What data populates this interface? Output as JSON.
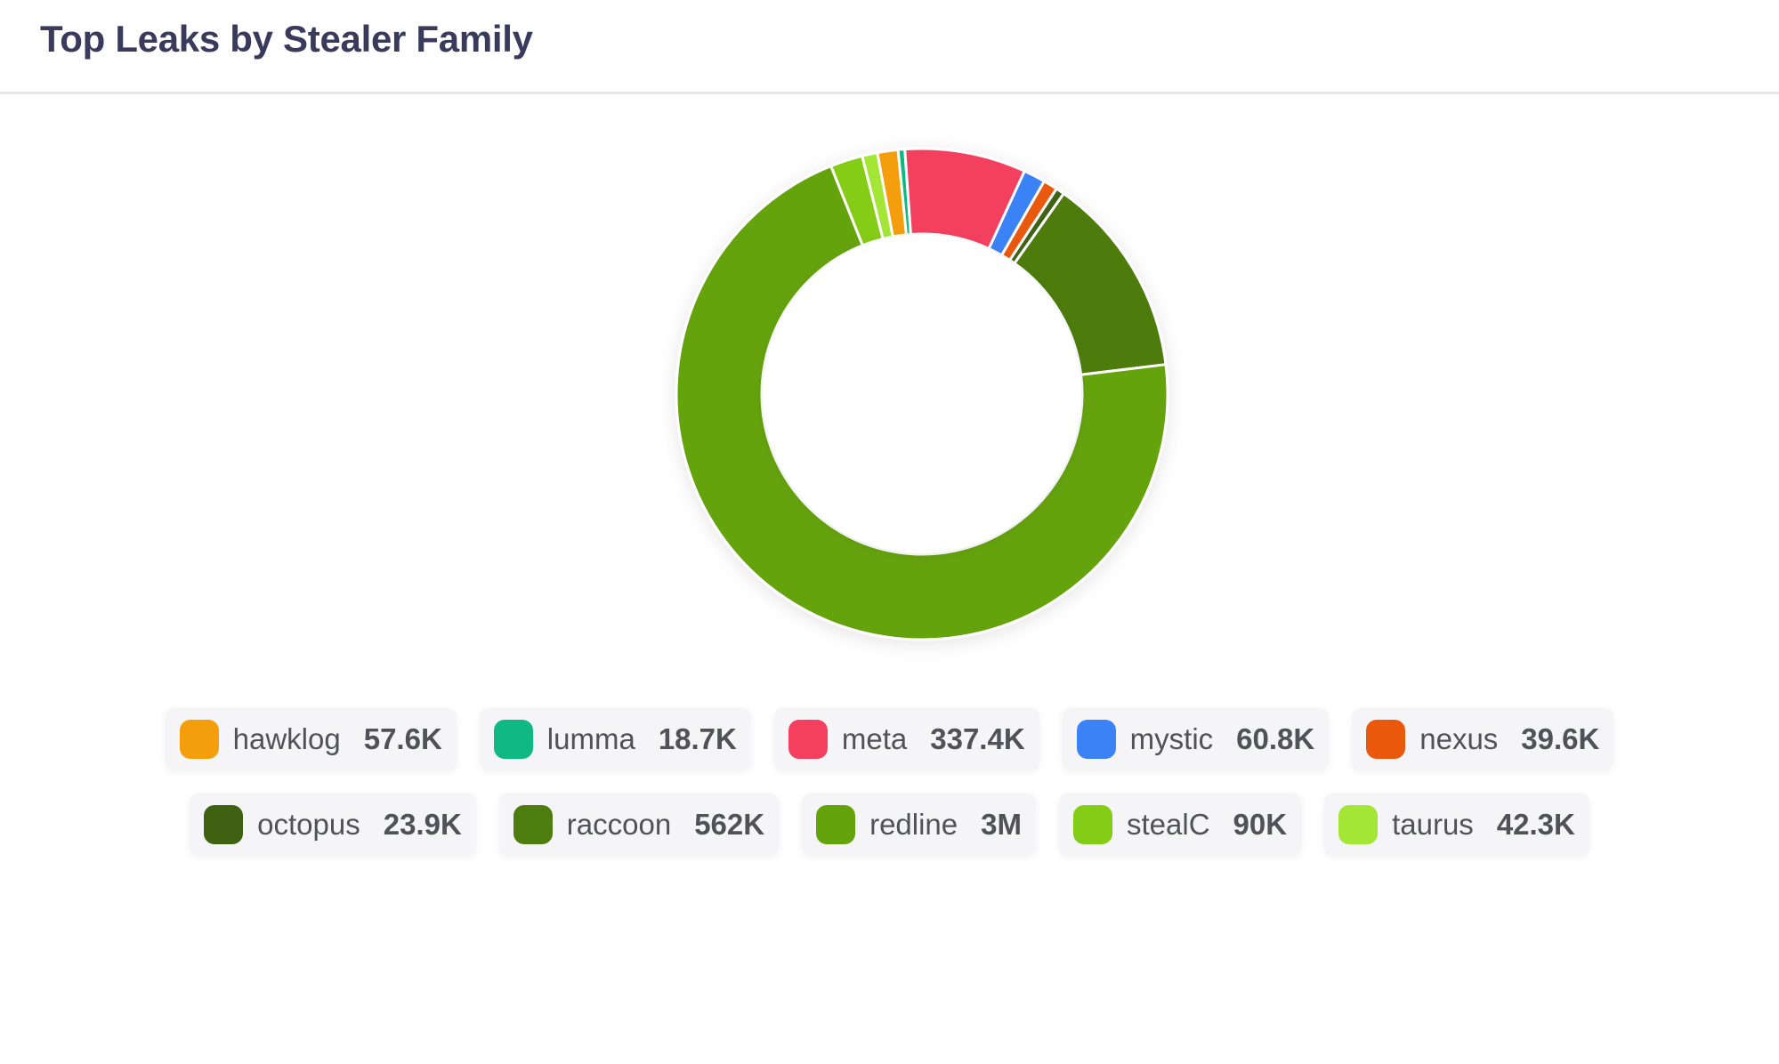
{
  "header": {
    "title": "Top Leaks by Stealer Family"
  },
  "chart_data": {
    "type": "pie",
    "title": "Top Leaks by Stealer Family",
    "donut": true,
    "start_angle_deg": -10.5,
    "legend_placement": "bottom",
    "slices": [
      {
        "name": "hawklog",
        "label": "57.6K",
        "value": 57600,
        "color": "#f59e0b"
      },
      {
        "name": "lumma",
        "label": "18.7K",
        "value": 18700,
        "color": "#10b981"
      },
      {
        "name": "meta",
        "label": "337.4K",
        "value": 337400,
        "color": "#f43f5e"
      },
      {
        "name": "mystic",
        "label": "60.8K",
        "value": 60800,
        "color": "#3b82f6"
      },
      {
        "name": "nexus",
        "label": "39.6K",
        "value": 39600,
        "color": "#ea580c"
      },
      {
        "name": "octopus",
        "label": "23.9K",
        "value": 23900,
        "color": "#3f6212"
      },
      {
        "name": "raccoon",
        "label": "562K",
        "value": 562000,
        "color": "#4d7c0f"
      },
      {
        "name": "redline",
        "label": "3M",
        "value": 3000000,
        "color": "#65a30d"
      },
      {
        "name": "stealC",
        "label": "90K",
        "value": 90000,
        "color": "#84cc16"
      },
      {
        "name": "taurus",
        "label": "42.3K",
        "value": 42300,
        "color": "#a3e635"
      }
    ],
    "legend_rows": [
      [
        "hawklog",
        "lumma",
        "meta",
        "mystic",
        "nexus"
      ],
      [
        "octopus",
        "raccoon",
        "redline",
        "stealC",
        "taurus"
      ]
    ]
  }
}
